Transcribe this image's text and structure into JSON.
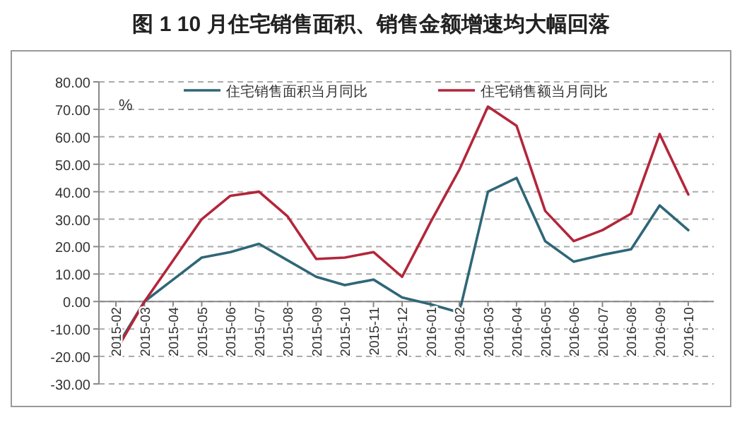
{
  "chart_data": {
    "type": "line",
    "title": "图 1  10 月住宅销售面积、销售金额增速均大幅回落",
    "categories": [
      "2015-02",
      "2015-03",
      "2015-04",
      "2015-05",
      "2015-06",
      "2015-07",
      "2015-08",
      "2015-09",
      "2015-10",
      "2015-11",
      "2015-12",
      "2016-01",
      "2016-02",
      "2016-03",
      "2016-04",
      "2016-05",
      "2016-06",
      "2016-07",
      "2016-08",
      "2016-09",
      "2016-10"
    ],
    "series": [
      {
        "name": "住宅销售面积当月同比",
        "color": "#2f6777",
        "values": [
          -17,
          0,
          8,
          16,
          18,
          21,
          15,
          9,
          6,
          8,
          1.5,
          -1,
          -4,
          40,
          45,
          22,
          14.5,
          17,
          19,
          35,
          26
        ]
      },
      {
        "name": "住宅销售额当月同比",
        "color": "#b3263a",
        "values": [
          -18,
          0,
          15,
          30,
          38.5,
          40,
          31,
          15.5,
          16,
          18,
          9,
          29,
          48,
          71,
          64,
          33,
          22,
          26,
          32,
          61,
          39
        ]
      }
    ],
    "annotations": [
      "%"
    ],
    "ylim": [
      -30,
      80
    ],
    "yticks": [
      {
        "value": -30,
        "label": "-30.00"
      },
      {
        "value": -20,
        "label": "-20.00"
      },
      {
        "value": -10,
        "label": "-10.00"
      },
      {
        "value": 0,
        "label": "0.00"
      },
      {
        "value": 10,
        "label": "10.00"
      },
      {
        "value": 20,
        "label": "20.00"
      },
      {
        "value": 30,
        "label": "30.00"
      },
      {
        "value": 40,
        "label": "40.00"
      },
      {
        "value": 50,
        "label": "50.00"
      },
      {
        "value": 60,
        "label": "60.00"
      },
      {
        "value": 70,
        "label": "70.00"
      },
      {
        "value": 80,
        "label": "80.00"
      }
    ],
    "grid": "y",
    "legend": "top",
    "line_style": "solid"
  }
}
